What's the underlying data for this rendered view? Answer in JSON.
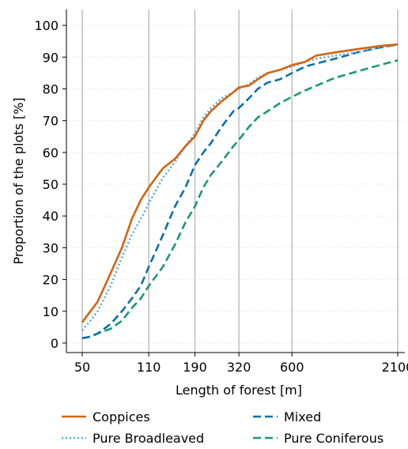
{
  "chart_data": {
    "type": "line",
    "xlabel": "Length of forest [m]",
    "ylabel": "Proportion of the plots [%]",
    "x_scale": "log",
    "x_ticks": [
      50,
      110,
      190,
      320,
      600,
      2100
    ],
    "x_tick_labels": [
      "50",
      "110",
      "190",
      "320",
      "600",
      "2100"
    ],
    "xlim": [
      50,
      2100
    ],
    "y_ticks": [
      0,
      10,
      20,
      30,
      40,
      50,
      60,
      70,
      80,
      90,
      100
    ],
    "y_tick_labels": [
      "0",
      "10",
      "20",
      "30",
      "40",
      "50",
      "60",
      "70",
      "80",
      "90",
      "100"
    ],
    "ylim": [
      -3,
      105
    ],
    "grid": {
      "vertical_major": true,
      "horizontal_dotted": true
    },
    "legend_position": "bottom",
    "series": [
      {
        "name": "Coppices",
        "color": "#d4640f",
        "dash": "solid",
        "points": [
          [
            50,
            6.5
          ],
          [
            55,
            10
          ],
          [
            60,
            13
          ],
          [
            70,
            22
          ],
          [
            80,
            30
          ],
          [
            90,
            39
          ],
          [
            100,
            45
          ],
          [
            110,
            49
          ],
          [
            130,
            55
          ],
          [
            150,
            58
          ],
          [
            170,
            62
          ],
          [
            190,
            65
          ],
          [
            210,
            70
          ],
          [
            230,
            73
          ],
          [
            260,
            76
          ],
          [
            300,
            79
          ],
          [
            320,
            80.5
          ],
          [
            360,
            81
          ],
          [
            400,
            83
          ],
          [
            450,
            85
          ],
          [
            520,
            86
          ],
          [
            600,
            87.5
          ],
          [
            700,
            88.5
          ],
          [
            800,
            90.5
          ],
          [
            1000,
            91.5
          ],
          [
            1300,
            92.5
          ],
          [
            1700,
            93.5
          ],
          [
            2100,
            94
          ]
        ]
      },
      {
        "name": "Pure Broadleaved",
        "color": "#5aa9e0",
        "dash": "dotted",
        "points": [
          [
            50,
            4
          ],
          [
            55,
            7
          ],
          [
            60,
            10
          ],
          [
            70,
            18
          ],
          [
            80,
            27
          ],
          [
            90,
            34
          ],
          [
            100,
            39
          ],
          [
            110,
            44
          ],
          [
            130,
            52
          ],
          [
            150,
            57
          ],
          [
            170,
            62
          ],
          [
            190,
            66
          ],
          [
            210,
            71
          ],
          [
            230,
            74
          ],
          [
            260,
            77
          ],
          [
            300,
            79
          ],
          [
            320,
            80
          ],
          [
            360,
            81.5
          ],
          [
            400,
            83.5
          ],
          [
            450,
            85
          ],
          [
            520,
            86
          ],
          [
            600,
            87
          ],
          [
            700,
            88.5
          ],
          [
            800,
            89.5
          ],
          [
            1000,
            90.5
          ],
          [
            1300,
            91.5
          ],
          [
            1700,
            93
          ],
          [
            2100,
            94
          ]
        ]
      },
      {
        "name": "Mixed",
        "color": "#0d6fad",
        "dash": "dashed",
        "points": [
          [
            50,
            1.5
          ],
          [
            55,
            2
          ],
          [
            60,
            3
          ],
          [
            70,
            6
          ],
          [
            80,
            10
          ],
          [
            90,
            14
          ],
          [
            100,
            18
          ],
          [
            110,
            24
          ],
          [
            130,
            34
          ],
          [
            150,
            43
          ],
          [
            170,
            49
          ],
          [
            190,
            56
          ],
          [
            210,
            60
          ],
          [
            230,
            63
          ],
          [
            260,
            68
          ],
          [
            300,
            73
          ],
          [
            320,
            74
          ],
          [
            360,
            77
          ],
          [
            400,
            80
          ],
          [
            450,
            82
          ],
          [
            520,
            83
          ],
          [
            600,
            85
          ],
          [
            700,
            87
          ],
          [
            800,
            88
          ],
          [
            1000,
            89.5
          ],
          [
            1300,
            91.5
          ],
          [
            1700,
            93
          ],
          [
            2100,
            94
          ]
        ]
      },
      {
        "name": "Pure Coniferous",
        "color": "#1a9a73",
        "dash": "dashed",
        "points": [
          [
            50,
            1.5
          ],
          [
            55,
            2
          ],
          [
            60,
            3
          ],
          [
            70,
            4.5
          ],
          [
            80,
            7
          ],
          [
            90,
            11
          ],
          [
            100,
            14
          ],
          [
            110,
            18
          ],
          [
            130,
            24
          ],
          [
            150,
            31
          ],
          [
            170,
            38
          ],
          [
            190,
            43
          ],
          [
            210,
            49
          ],
          [
            230,
            53
          ],
          [
            260,
            57
          ],
          [
            300,
            62
          ],
          [
            320,
            64
          ],
          [
            360,
            68
          ],
          [
            400,
            71
          ],
          [
            450,
            73
          ],
          [
            520,
            75.5
          ],
          [
            600,
            77.5
          ],
          [
            700,
            79.5
          ],
          [
            800,
            81
          ],
          [
            1000,
            83.5
          ],
          [
            1300,
            85.5
          ],
          [
            1700,
            87.5
          ],
          [
            2100,
            89
          ]
        ]
      }
    ]
  }
}
